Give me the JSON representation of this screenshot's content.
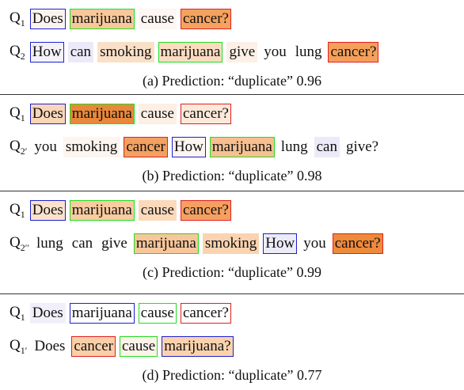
{
  "panels": [
    {
      "rows": [
        {
          "label": "Q",
          "sub": "1",
          "tokens": [
            {
              "text": "Does",
              "border": "#1f1fd0",
              "bg": "#fbf3ee"
            },
            {
              "text": "marijuana",
              "border": "#22dd22",
              "bg": "#f8c89a"
            },
            {
              "text": "cause",
              "bg": "#fdf6f2"
            },
            {
              "text": "cancer?",
              "border": "#e02020",
              "bg": "#f4a25e"
            }
          ]
        },
        {
          "label": "Q",
          "sub": "2",
          "tokens": [
            {
              "text": "How",
              "border": "#1f1fd0",
              "bg": "#f3f2fb"
            },
            {
              "text": "can",
              "bg": "#eceaf8"
            },
            {
              "text": "smoking",
              "bg": "#fbe0c8"
            },
            {
              "text": "marijuana",
              "border": "#22dd22",
              "bg": "#fbdcc0"
            },
            {
              "text": "give",
              "bg": "#fdf0e6"
            },
            {
              "text": "you"
            },
            {
              "text": "lung"
            },
            {
              "text": "cancer?",
              "border": "#e02020",
              "bg": "#f5a05a"
            }
          ]
        }
      ],
      "caption": "(a) Prediction: “duplicate” 0.96"
    },
    {
      "rows": [
        {
          "label": "Q",
          "sub": "1",
          "tokens": [
            {
              "text": "Does",
              "border": "#1f1fd0",
              "bg": "#fad6b8"
            },
            {
              "text": "marijuana",
              "border": "#22dd22",
              "bg": "#e8883a"
            },
            {
              "text": "cause",
              "bg": "#fcefe4"
            },
            {
              "text": "cancer?",
              "border": "#e02020",
              "bg": "#fde9da"
            }
          ]
        },
        {
          "label": "Q",
          "sub": "2′",
          "tokens": [
            {
              "text": "you"
            },
            {
              "text": "smoking",
              "bg": "#fdf5ef"
            },
            {
              "text": "cancer",
              "border": "#e02020",
              "bg": "#f4a060"
            },
            {
              "text": "How",
              "border": "#1f1fd0",
              "bg": "#fdf5ef"
            },
            {
              "text": "marijuana",
              "border": "#22dd22",
              "bg": "#f6c090"
            },
            {
              "text": "lung"
            },
            {
              "text": "can",
              "bg": "#eceaf8"
            },
            {
              "text": "give?"
            }
          ]
        }
      ],
      "caption": "(b) Prediction: “duplicate” 0.98"
    },
    {
      "rows": [
        {
          "label": "Q",
          "sub": "1",
          "tokens": [
            {
              "text": "Does",
              "border": "#1f1fd0",
              "bg": "#fce2cc"
            },
            {
              "text": "marijuana",
              "border": "#22dd22",
              "bg": "#f8cba0"
            },
            {
              "text": "cause",
              "bg": "#fbd9bb"
            },
            {
              "text": "cancer?",
              "border": "#e02020",
              "bg": "#f5a060"
            }
          ]
        },
        {
          "label": "Q",
          "sub": "2′′",
          "tokens": [
            {
              "text": "lung"
            },
            {
              "text": "can"
            },
            {
              "text": "give"
            },
            {
              "text": "marijuana",
              "border": "#22dd22",
              "bg": "#f7c69a"
            },
            {
              "text": "smoking",
              "bg": "#fad3b0"
            },
            {
              "text": "How",
              "border": "#1f1fd0",
              "bg": "#ecebf8"
            },
            {
              "text": "you"
            },
            {
              "text": "cancer?",
              "border": "#e02020",
              "bg": "#ee8a3c"
            }
          ]
        }
      ],
      "caption": "(c) Prediction: “duplicate” 0.99"
    },
    {
      "rows": [
        {
          "label": "Q",
          "sub": "1",
          "tokens": [
            {
              "text": "Does",
              "bg": "#f1f0fa"
            },
            {
              "text": "marijuana",
              "border": "#1f1fd0"
            },
            {
              "text": "cause",
              "border": "#22dd22"
            },
            {
              "text": "cancer?",
              "border": "#e02020"
            }
          ]
        },
        {
          "label": "Q",
          "sub": "1′",
          "tokens": [
            {
              "text": "Does"
            },
            {
              "text": "cancer",
              "border": "#e02020",
              "bg": "#f9cfa8"
            },
            {
              "text": "cause",
              "border": "#22dd22",
              "bg": "#fdf3ea"
            },
            {
              "text": "marijuana?",
              "border": "#1f1fd0",
              "bg": "#fad3ae"
            }
          ]
        }
      ],
      "caption": "(d) Prediction: “duplicate” 0.77"
    }
  ]
}
